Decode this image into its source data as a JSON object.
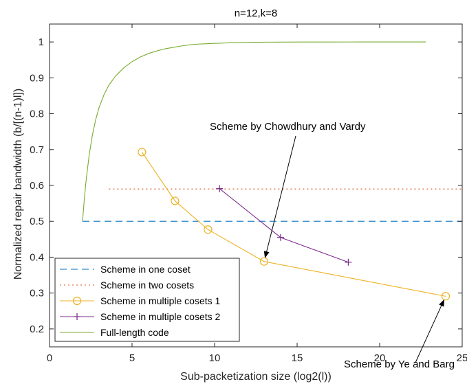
{
  "chart_data": {
    "type": "line",
    "title": "n=12,k=8",
    "xlabel": "Sub-packetization size (log2(l))",
    "ylabel": "Normalized repair bandwidth (b/[(n-1)l])",
    "xlim": [
      0,
      25
    ],
    "ylim": [
      0.15,
      1.05
    ],
    "xticks": [
      "0",
      "5",
      "10",
      "15",
      "20",
      "25"
    ],
    "yticks": [
      "0.2",
      "0.3",
      "0.4",
      "0.5",
      "0.6",
      "0.7",
      "0.8",
      "0.9",
      "1"
    ],
    "grid": false,
    "legend_position": "bottom-left",
    "series": [
      {
        "name": "Scheme in one coset",
        "style": "dashed",
        "marker": "none",
        "color": "#0072BD",
        "x": [
          2,
          25
        ],
        "y": [
          0.5,
          0.5
        ]
      },
      {
        "name": "Scheme in two cosets",
        "style": "dotted",
        "marker": "none",
        "color": "#D95319",
        "x": [
          3.6,
          25
        ],
        "y": [
          0.59,
          0.59
        ]
      },
      {
        "name": "Scheme in multiple cosets 1",
        "style": "solid",
        "marker": "circle",
        "color": "#EDB120",
        "x": [
          5.6,
          7.6,
          9.6,
          13,
          24
        ],
        "y": [
          0.693,
          0.557,
          0.477,
          0.388,
          0.291
        ]
      },
      {
        "name": "Scheme in multiple cosets 2",
        "style": "solid",
        "marker": "plus",
        "color": "#7E2F8E",
        "x": [
          10.3,
          14,
          18.1
        ],
        "y": [
          0.591,
          0.455,
          0.386
        ]
      },
      {
        "name": "Full-length code",
        "style": "solid",
        "marker": "none",
        "color": "#77AC30",
        "x": [
          2,
          2.1,
          2.2,
          2.4,
          2.6,
          2.8,
          3.0,
          3.3,
          3.6,
          4.0,
          4.5,
          5.0,
          5.5,
          6.0,
          6.5,
          7.0,
          7.5,
          8.0,
          8.5,
          9.0,
          9.5,
          10.0,
          11.0,
          12.0,
          13.0,
          14.0,
          15.0,
          17.0,
          19.0,
          22.8
        ],
        "y": [
          0.5,
          0.557,
          0.607,
          0.684,
          0.741,
          0.784,
          0.817,
          0.853,
          0.88,
          0.905,
          0.928,
          0.945,
          0.958,
          0.968,
          0.975,
          0.981,
          0.985,
          0.989,
          0.992,
          0.994,
          0.995,
          0.996,
          0.998,
          0.999,
          0.9995,
          0.9997,
          0.9998,
          0.9999,
          1.0,
          1.0
        ]
      }
    ],
    "annotations": [
      {
        "text": "Scheme by Chowdhury and Vardy",
        "arrow_to": [
          13,
          0.388
        ]
      },
      {
        "text": "Scheme by Ye and Barg",
        "arrow_to": [
          24,
          0.291
        ]
      }
    ]
  }
}
